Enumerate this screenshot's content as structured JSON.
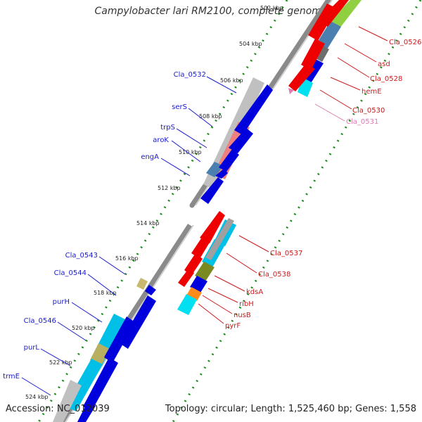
{
  "title": "Campylobacter lari RM2100, complete genome",
  "footer": {
    "accession": "Accession: NC_012039",
    "summary": "Topology: circular; Length: 1,525,460 bp; Genes: 1,558"
  },
  "colors": {
    "ring": "#8a8a8a",
    "tick": "#1a8a1a",
    "left_label": "#1a1acc",
    "right_label": "#cc1a1a",
    "pseudo_label": "#e07ab0"
  },
  "scale_labels": [
    "502 kbp",
    "504 kbp",
    "506 kbp",
    "508 kbp",
    "510 kbp",
    "512 kbp",
    "514 kbp",
    "516 kbp",
    "518 kbp",
    "520 kbp",
    "522 kbp",
    "524 kbp"
  ],
  "left_genes": [
    "Cla_0532",
    "serS",
    "trpS",
    "aroK",
    "engA",
    "Cla_0543",
    "Cla_0544",
    "purH",
    "Cla_0546",
    "purL",
    "trmE"
  ],
  "right_genes": [
    "Cla_0526",
    "asd",
    "Cla_0528",
    "hemE",
    "Cla_0530",
    "Cla_0531",
    "Cla_0537",
    "Cla_0538",
    "kdsA",
    "ribH",
    "nusB",
    "pyrF"
  ]
}
